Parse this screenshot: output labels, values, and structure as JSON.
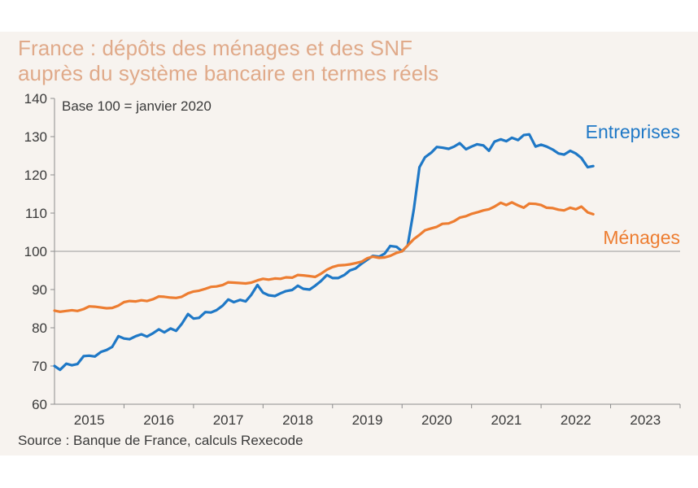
{
  "title": {
    "line1": "France : dépôts des ménages et des SNF",
    "line2": "auprès du système bancaire en termes réels"
  },
  "source": "Source : Banque de France, calculs Rexecode",
  "colors": {
    "entreprises": "#1f78c6",
    "menages": "#ed7d31",
    "title": "#e0aa8a",
    "axis": "#8c8c8c",
    "text": "#3a3a3a",
    "panel": "#f7f3ef"
  },
  "chart_data": {
    "type": "line",
    "title": "France : dépôts des ménages et des SNF auprès du système bancaire en termes réels",
    "annotation": "Base 100 = janvier 2020",
    "xlabel": "",
    "ylabel": "",
    "ylim": [
      60,
      140
    ],
    "yticks": [
      60,
      70,
      80,
      90,
      100,
      110,
      120,
      130,
      140
    ],
    "reference_line": 100,
    "xlim": [
      2014.5,
      2023.5
    ],
    "xtick_labels": [
      "2015",
      "2016",
      "2017",
      "2018",
      "2019",
      "2020",
      "2021",
      "2022",
      "2023"
    ],
    "grid": false,
    "series": [
      {
        "name": "Entreprises",
        "color": "#1f78c6",
        "points": [
          [
            2014.5,
            70.0
          ],
          [
            2014.58,
            69.0
          ],
          [
            2014.67,
            70.6
          ],
          [
            2014.75,
            70.2
          ],
          [
            2014.83,
            70.5
          ],
          [
            2014.92,
            72.6
          ],
          [
            2015.0,
            72.7
          ],
          [
            2015.08,
            72.5
          ],
          [
            2015.17,
            73.7
          ],
          [
            2015.25,
            74.2
          ],
          [
            2015.33,
            75.0
          ],
          [
            2015.42,
            77.8
          ],
          [
            2015.5,
            77.2
          ],
          [
            2015.58,
            77.0
          ],
          [
            2015.67,
            77.8
          ],
          [
            2015.75,
            78.3
          ],
          [
            2015.83,
            77.7
          ],
          [
            2015.92,
            78.6
          ],
          [
            2016.0,
            79.6
          ],
          [
            2016.08,
            78.8
          ],
          [
            2016.17,
            79.8
          ],
          [
            2016.25,
            79.2
          ],
          [
            2016.33,
            81.0
          ],
          [
            2016.42,
            83.6
          ],
          [
            2016.5,
            82.4
          ],
          [
            2016.58,
            82.6
          ],
          [
            2016.67,
            84.1
          ],
          [
            2016.75,
            84.0
          ],
          [
            2016.83,
            84.6
          ],
          [
            2016.92,
            85.8
          ],
          [
            2017.0,
            87.4
          ],
          [
            2017.08,
            86.7
          ],
          [
            2017.17,
            87.3
          ],
          [
            2017.25,
            86.9
          ],
          [
            2017.33,
            88.6
          ],
          [
            2017.42,
            91.2
          ],
          [
            2017.5,
            89.2
          ],
          [
            2017.58,
            88.5
          ],
          [
            2017.67,
            88.3
          ],
          [
            2017.75,
            89.0
          ],
          [
            2017.83,
            89.6
          ],
          [
            2017.92,
            89.9
          ],
          [
            2018.0,
            91.0
          ],
          [
            2018.08,
            90.2
          ],
          [
            2018.17,
            90.0
          ],
          [
            2018.25,
            91.0
          ],
          [
            2018.33,
            92.2
          ],
          [
            2018.42,
            93.8
          ],
          [
            2018.5,
            93.0
          ],
          [
            2018.58,
            93.0
          ],
          [
            2018.67,
            93.8
          ],
          [
            2018.75,
            95.0
          ],
          [
            2018.83,
            95.5
          ],
          [
            2018.92,
            96.8
          ],
          [
            2019.0,
            97.8
          ],
          [
            2019.08,
            98.8
          ],
          [
            2019.17,
            98.6
          ],
          [
            2019.25,
            99.4
          ],
          [
            2019.33,
            101.4
          ],
          [
            2019.42,
            101.2
          ],
          [
            2019.5,
            100.0
          ],
          [
            2019.58,
            101.5
          ],
          [
            2019.67,
            111.0
          ],
          [
            2019.75,
            122.0
          ],
          [
            2019.83,
            124.6
          ],
          [
            2019.92,
            125.8
          ],
          [
            2020.0,
            127.3
          ],
          [
            2020.08,
            127.1
          ],
          [
            2020.17,
            126.8
          ],
          [
            2020.25,
            127.4
          ],
          [
            2020.33,
            128.3
          ],
          [
            2020.42,
            126.7
          ],
          [
            2020.5,
            127.4
          ],
          [
            2020.58,
            128.0
          ],
          [
            2020.67,
            127.7
          ],
          [
            2020.75,
            126.3
          ],
          [
            2020.83,
            128.7
          ],
          [
            2020.92,
            129.3
          ],
          [
            2021.0,
            128.8
          ],
          [
            2021.08,
            129.7
          ],
          [
            2021.17,
            129.1
          ],
          [
            2021.25,
            130.4
          ],
          [
            2021.33,
            130.6
          ],
          [
            2021.42,
            127.4
          ],
          [
            2021.5,
            127.9
          ],
          [
            2021.58,
            127.4
          ],
          [
            2021.67,
            126.6
          ],
          [
            2021.75,
            125.6
          ],
          [
            2021.83,
            125.3
          ],
          [
            2021.92,
            126.3
          ],
          [
            2022.0,
            125.6
          ],
          [
            2022.08,
            124.4
          ],
          [
            2022.17,
            122.0
          ],
          [
            2022.25,
            122.3
          ]
        ]
      },
      {
        "name": "Ménages",
        "color": "#ed7d31",
        "points": [
          [
            2014.5,
            84.5
          ],
          [
            2014.58,
            84.2
          ],
          [
            2014.67,
            84.4
          ],
          [
            2014.75,
            84.6
          ],
          [
            2014.83,
            84.4
          ],
          [
            2014.92,
            84.9
          ],
          [
            2015.0,
            85.6
          ],
          [
            2015.08,
            85.5
          ],
          [
            2015.17,
            85.3
          ],
          [
            2015.25,
            85.1
          ],
          [
            2015.33,
            85.2
          ],
          [
            2015.42,
            85.8
          ],
          [
            2015.5,
            86.7
          ],
          [
            2015.58,
            87.0
          ],
          [
            2015.67,
            86.9
          ],
          [
            2015.75,
            87.2
          ],
          [
            2015.83,
            87.0
          ],
          [
            2015.92,
            87.5
          ],
          [
            2016.0,
            88.2
          ],
          [
            2016.08,
            88.1
          ],
          [
            2016.17,
            87.9
          ],
          [
            2016.25,
            87.8
          ],
          [
            2016.33,
            88.1
          ],
          [
            2016.42,
            89.0
          ],
          [
            2016.5,
            89.5
          ],
          [
            2016.58,
            89.7
          ],
          [
            2016.67,
            90.2
          ],
          [
            2016.75,
            90.7
          ],
          [
            2016.83,
            90.8
          ],
          [
            2016.92,
            91.2
          ],
          [
            2017.0,
            91.9
          ],
          [
            2017.08,
            91.8
          ],
          [
            2017.17,
            91.7
          ],
          [
            2017.25,
            91.6
          ],
          [
            2017.33,
            91.8
          ],
          [
            2017.42,
            92.4
          ],
          [
            2017.5,
            92.8
          ],
          [
            2017.58,
            92.6
          ],
          [
            2017.67,
            92.9
          ],
          [
            2017.75,
            92.8
          ],
          [
            2017.83,
            93.2
          ],
          [
            2017.92,
            93.1
          ],
          [
            2018.0,
            93.8
          ],
          [
            2018.08,
            93.7
          ],
          [
            2018.17,
            93.5
          ],
          [
            2018.25,
            93.3
          ],
          [
            2018.33,
            94.1
          ],
          [
            2018.42,
            95.2
          ],
          [
            2018.5,
            95.9
          ],
          [
            2018.58,
            96.3
          ],
          [
            2018.67,
            96.4
          ],
          [
            2018.75,
            96.6
          ],
          [
            2018.83,
            96.9
          ],
          [
            2018.92,
            97.3
          ],
          [
            2019.0,
            98.2
          ],
          [
            2019.08,
            98.6
          ],
          [
            2019.17,
            98.3
          ],
          [
            2019.25,
            98.4
          ],
          [
            2019.33,
            98.8
          ],
          [
            2019.42,
            99.6
          ],
          [
            2019.5,
            100.0
          ],
          [
            2019.58,
            101.5
          ],
          [
            2019.67,
            103.2
          ],
          [
            2019.75,
            104.3
          ],
          [
            2019.83,
            105.5
          ],
          [
            2019.92,
            106.0
          ],
          [
            2020.0,
            106.4
          ],
          [
            2020.08,
            107.2
          ],
          [
            2020.17,
            107.3
          ],
          [
            2020.25,
            107.9
          ],
          [
            2020.33,
            108.8
          ],
          [
            2020.42,
            109.2
          ],
          [
            2020.5,
            109.8
          ],
          [
            2020.58,
            110.2
          ],
          [
            2020.67,
            110.7
          ],
          [
            2020.75,
            111.0
          ],
          [
            2020.83,
            111.7
          ],
          [
            2020.92,
            112.7
          ],
          [
            2021.0,
            112.1
          ],
          [
            2021.08,
            112.8
          ],
          [
            2021.17,
            112.0
          ],
          [
            2021.25,
            111.4
          ],
          [
            2021.33,
            112.5
          ],
          [
            2021.42,
            112.4
          ],
          [
            2021.5,
            112.1
          ],
          [
            2021.58,
            111.4
          ],
          [
            2021.67,
            111.3
          ],
          [
            2021.75,
            110.9
          ],
          [
            2021.83,
            110.7
          ],
          [
            2021.92,
            111.4
          ],
          [
            2022.0,
            111.0
          ],
          [
            2022.08,
            111.7
          ],
          [
            2022.17,
            110.2
          ],
          [
            2022.25,
            109.7
          ]
        ]
      }
    ]
  }
}
